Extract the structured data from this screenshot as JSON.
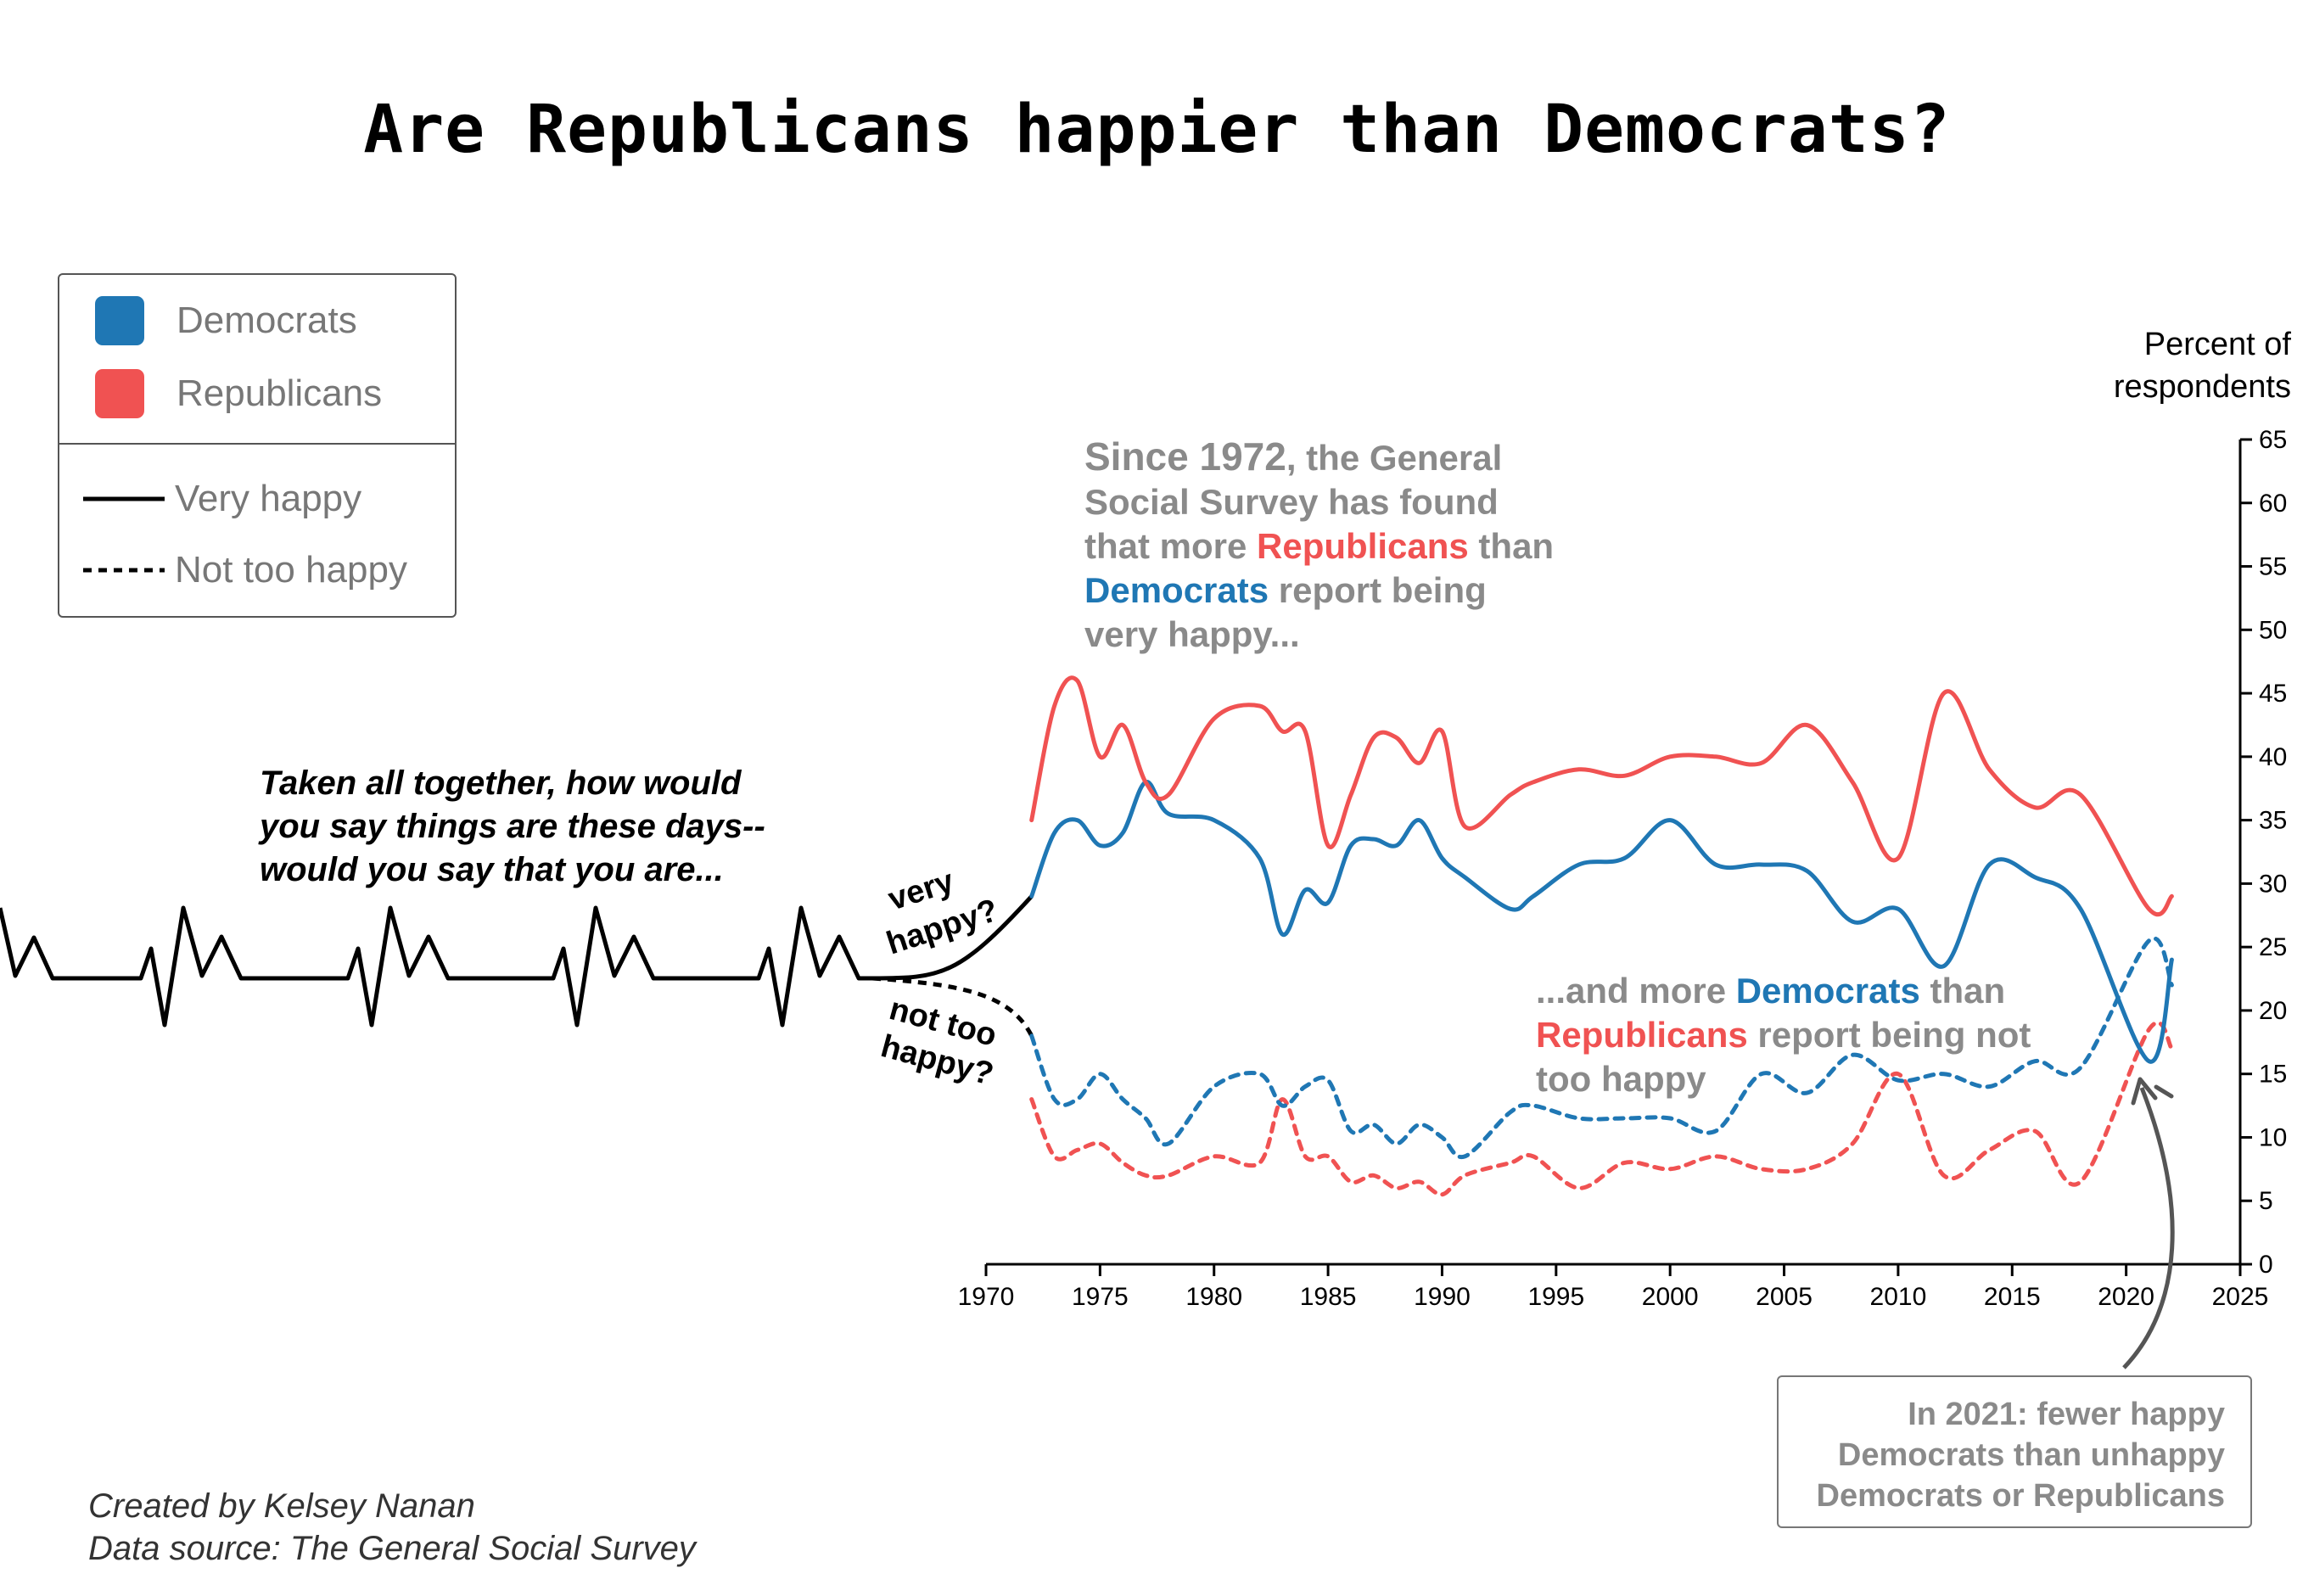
{
  "title": "Are Republicans happier than Democrats?",
  "legend": {
    "democrats": "Democrats",
    "republicans": "Republicans",
    "very_happy": "Very happy",
    "not_too_happy": "Not too happy"
  },
  "colors": {
    "democrats": "#1f77b4",
    "republicans": "#f05252"
  },
  "question": {
    "line1": "Taken all together, how would",
    "line2": "you say things are these days--",
    "line3": "would you say that you are...",
    "very_tag1": "very",
    "very_tag2": "happy?",
    "not_tag1": "not too",
    "not_tag2": "happy?"
  },
  "note_top": {
    "since": "Since 1972",
    "t1": ", the General",
    "t2": "Social Survey has found",
    "t3": "that more ",
    "rep": "Republicans",
    "t4": " than",
    "dem": "Democrats",
    "t5": " report being",
    "t6": "very happy..."
  },
  "note_bottom": {
    "t1": "...and more ",
    "dem": "Democrats",
    "t2": " than",
    "rep": "Republicans",
    "t3": " report being not",
    "t4": "too happy"
  },
  "callout": {
    "line1": "In 2021: fewer happy",
    "line2": "Democrats than unhappy",
    "line3": "Democrats or Republicans"
  },
  "credits": {
    "line1": "Created by Kelsey Nanan",
    "line2": "Data source: The General Social Survey"
  },
  "chart_data": {
    "type": "line",
    "ylabel": "Percent of respondents",
    "xlim": [
      1970,
      2025
    ],
    "ylim": [
      0,
      65
    ],
    "x_ticks": [
      1970,
      1975,
      1980,
      1985,
      1990,
      1995,
      2000,
      2005,
      2010,
      2015,
      2020,
      2025
    ],
    "y_ticks": [
      0,
      5,
      10,
      15,
      20,
      25,
      30,
      35,
      40,
      45,
      50,
      55,
      60,
      65
    ],
    "y_axis_side": "right",
    "series": [
      {
        "name": "Republicans",
        "measure": "Very happy",
        "style": "solid",
        "x": [
          1972,
          1973,
          1974,
          1975,
          1976,
          1977,
          1978,
          1980,
          1982,
          1983,
          1984,
          1985,
          1986,
          1987,
          1988,
          1989,
          1990,
          1991,
          1993,
          1994,
          1996,
          1998,
          2000,
          2002,
          2004,
          2006,
          2008,
          2010,
          2012,
          2014,
          2016,
          2018,
          2021,
          2022
        ],
        "y": [
          35,
          44,
          46,
          40,
          42.5,
          38,
          37,
          43,
          44,
          42,
          42,
          33,
          37,
          41.5,
          41.5,
          39.5,
          42,
          34.5,
          37,
          38,
          39,
          38.5,
          40,
          40,
          39.5,
          42.5,
          38,
          32,
          45,
          39,
          36,
          37,
          28,
          29
        ]
      },
      {
        "name": "Democrats",
        "measure": "Very happy",
        "style": "solid",
        "x": [
          1972,
          1973,
          1974,
          1975,
          1976,
          1977,
          1978,
          1980,
          1982,
          1983,
          1984,
          1985,
          1986,
          1987,
          1988,
          1989,
          1990,
          1991,
          1993,
          1994,
          1996,
          1998,
          2000,
          2002,
          2004,
          2006,
          2008,
          2010,
          2012,
          2014,
          2016,
          2018,
          2021,
          2022
        ],
        "y": [
          29,
          34,
          35,
          33,
          34,
          38,
          35.5,
          35,
          32,
          26,
          29.5,
          28.5,
          33,
          33.5,
          33,
          35,
          32,
          30.5,
          28,
          29,
          31.5,
          32,
          35,
          31.5,
          31.5,
          31,
          27,
          28,
          23.5,
          31.5,
          30.5,
          28,
          16,
          24
        ]
      },
      {
        "name": "Democrats",
        "measure": "Not too happy",
        "style": "dashed",
        "x": [
          1972,
          1973,
          1974,
          1975,
          1976,
          1977,
          1978,
          1980,
          1982,
          1983,
          1984,
          1985,
          1986,
          1987,
          1988,
          1989,
          1990,
          1991,
          1993,
          1994,
          1996,
          1998,
          2000,
          2002,
          2004,
          2006,
          2008,
          2010,
          2012,
          2014,
          2016,
          2018,
          2021,
          2022
        ],
        "y": [
          18,
          13,
          13,
          15,
          13,
          11.5,
          9.5,
          14,
          15,
          12.5,
          14,
          14.5,
          10.5,
          11,
          9.5,
          11,
          10,
          8.5,
          12,
          12.5,
          11.5,
          11.5,
          11.5,
          10.5,
          15,
          13.5,
          16.5,
          14.5,
          15,
          14,
          16,
          15.5,
          25.5,
          22
        ]
      },
      {
        "name": "Republicans",
        "measure": "Not too happy",
        "style": "dashed",
        "x": [
          1972,
          1973,
          1974,
          1975,
          1976,
          1977,
          1978,
          1980,
          1982,
          1983,
          1984,
          1985,
          1986,
          1987,
          1988,
          1989,
          1990,
          1991,
          1993,
          1994,
          1996,
          1998,
          2000,
          2002,
          2004,
          2006,
          2008,
          2010,
          2012,
          2014,
          2016,
          2018,
          2021,
          2022
        ],
        "y": [
          13,
          8.5,
          9,
          9.5,
          8,
          7,
          7,
          8.5,
          8,
          13,
          8.5,
          8.5,
          6.5,
          7,
          6,
          6.5,
          5.5,
          7,
          8,
          8.5,
          6,
          8,
          7.5,
          8.5,
          7.5,
          7.5,
          9.5,
          15,
          7,
          9,
          10.5,
          6.5,
          18.5,
          17
        ]
      }
    ]
  }
}
